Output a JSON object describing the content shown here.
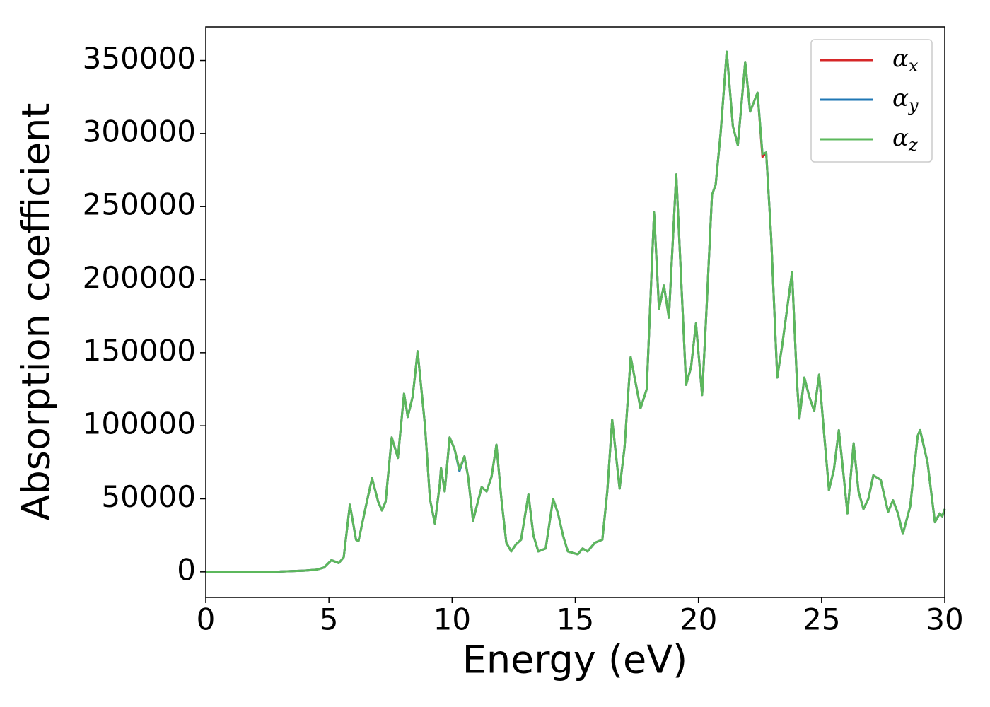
{
  "chart_data": {
    "type": "line",
    "xlabel": "Energy (eV)",
    "ylabel": "Absorption coefficient",
    "x": [
      0,
      1,
      2,
      3,
      4,
      4.5,
      4.8,
      5.1,
      5.4,
      5.6,
      5.85,
      6.1,
      6.2,
      6.5,
      6.75,
      7.0,
      7.15,
      7.3,
      7.55,
      7.8,
      8.05,
      8.2,
      8.4,
      8.6,
      8.9,
      9.1,
      9.3,
      9.5,
      9.55,
      9.7,
      9.9,
      10.1,
      10.3,
      10.5,
      10.65,
      10.85,
      11.0,
      11.2,
      11.4,
      11.6,
      11.8,
      12.0,
      12.2,
      12.4,
      12.6,
      12.8,
      13.1,
      13.3,
      13.5,
      13.8,
      14.1,
      14.3,
      14.5,
      14.7,
      14.9,
      15.1,
      15.3,
      15.5,
      15.8,
      16.1,
      16.3,
      16.5,
      16.8,
      17.0,
      17.25,
      17.5,
      17.65,
      17.9,
      18.2,
      18.4,
      18.6,
      18.8,
      19.1,
      19.3,
      19.5,
      19.7,
      19.9,
      20.15,
      20.3,
      20.55,
      20.7,
      20.9,
      21.15,
      21.4,
      21.6,
      21.9,
      22.1,
      22.4,
      22.6,
      22.75,
      22.95,
      23.2,
      23.4,
      23.6,
      23.8,
      24.0,
      24.1,
      24.3,
      24.5,
      24.7,
      24.9,
      25.1,
      25.3,
      25.5,
      25.7,
      25.9,
      26.05,
      26.3,
      26.5,
      26.7,
      26.9,
      27.1,
      27.4,
      27.7,
      27.9,
      28.1,
      28.3,
      28.6,
      28.9,
      29.0,
      29.3,
      29.6,
      29.8,
      29.9,
      30
    ],
    "series": [
      {
        "name": "αx",
        "color": "#d62728",
        "values": [
          0,
          0,
          0,
          200,
          800,
          1500,
          3000,
          8000,
          6000,
          10000,
          46000,
          22000,
          21000,
          45000,
          64000,
          48000,
          42000,
          48000,
          92000,
          78000,
          122000,
          106000,
          120000,
          151000,
          100000,
          50000,
          33000,
          60000,
          71000,
          55000,
          92000,
          84000,
          70000,
          79000,
          65000,
          35000,
          45000,
          58000,
          55000,
          65000,
          87000,
          50000,
          20000,
          14000,
          19000,
          22000,
          53000,
          25000,
          14000,
          16000,
          50000,
          40000,
          25000,
          14000,
          13000,
          12000,
          16000,
          14000,
          20000,
          22000,
          55000,
          104000,
          57000,
          85000,
          147000,
          125000,
          112000,
          125000,
          246000,
          180000,
          196000,
          174000,
          272000,
          200000,
          128000,
          140000,
          170000,
          121000,
          170000,
          258000,
          265000,
          300000,
          356000,
          305000,
          292000,
          349000,
          315000,
          328000,
          284000,
          287000,
          230000,
          133000,
          155000,
          180000,
          205000,
          130000,
          105000,
          133000,
          120000,
          110000,
          135000,
          95000,
          56000,
          70000,
          97000,
          65000,
          40000,
          88000,
          55000,
          43000,
          50000,
          66000,
          63000,
          41000,
          49000,
          40000,
          26000,
          45000,
          93000,
          97000,
          75000,
          34000,
          40000,
          38000,
          43000
        ]
      },
      {
        "name": "αy",
        "color": "#1f77b4",
        "values": [
          0,
          0,
          0,
          200,
          800,
          1500,
          3000,
          8000,
          6000,
          10000,
          46000,
          22000,
          21000,
          45000,
          64000,
          48000,
          42000,
          48000,
          92000,
          78000,
          122000,
          106000,
          120000,
          151000,
          100000,
          50000,
          33000,
          60000,
          71000,
          55000,
          92000,
          84000,
          69000,
          79000,
          65000,
          35000,
          45000,
          58000,
          55000,
          65000,
          87000,
          50000,
          20000,
          14000,
          19000,
          22000,
          53000,
          25000,
          14000,
          16000,
          50000,
          40000,
          25000,
          14000,
          13000,
          12000,
          16000,
          14000,
          20000,
          22000,
          55000,
          104000,
          57000,
          85000,
          147000,
          125000,
          112000,
          125000,
          246000,
          180000,
          196000,
          174000,
          272000,
          200000,
          128000,
          140000,
          170000,
          121000,
          170000,
          258000,
          265000,
          300000,
          356000,
          305000,
          292000,
          349000,
          315000,
          328000,
          286000,
          287000,
          230000,
          133000,
          155000,
          180000,
          205000,
          130000,
          105000,
          133000,
          120000,
          110000,
          135000,
          95000,
          56000,
          70000,
          97000,
          65000,
          40000,
          88000,
          55000,
          43000,
          50000,
          66000,
          63000,
          41000,
          49000,
          40000,
          26000,
          45000,
          93000,
          97000,
          75000,
          34000,
          40000,
          38000,
          43000
        ]
      },
      {
        "name": "αz",
        "color": "#5cb85c",
        "values": [
          0,
          0,
          0,
          200,
          800,
          1500,
          3000,
          8000,
          6000,
          10000,
          46000,
          22000,
          21000,
          45000,
          64000,
          48000,
          42000,
          48000,
          92000,
          78000,
          122000,
          106000,
          120000,
          151000,
          100000,
          50000,
          33000,
          60000,
          71000,
          55000,
          92000,
          84000,
          70000,
          79000,
          65000,
          35000,
          45000,
          58000,
          55000,
          65000,
          87000,
          50000,
          20000,
          14000,
          19000,
          22000,
          53000,
          25000,
          14000,
          16000,
          50000,
          40000,
          25000,
          14000,
          13000,
          12000,
          16000,
          14000,
          20000,
          22000,
          55000,
          104000,
          57000,
          85000,
          147000,
          125000,
          112000,
          125000,
          246000,
          180000,
          196000,
          174000,
          272000,
          200000,
          128000,
          140000,
          170000,
          121000,
          170000,
          258000,
          265000,
          300000,
          356000,
          305000,
          292000,
          349000,
          315000,
          328000,
          286000,
          287000,
          230000,
          133000,
          155000,
          180000,
          205000,
          130000,
          105000,
          133000,
          120000,
          110000,
          135000,
          95000,
          56000,
          70000,
          97000,
          65000,
          40000,
          88000,
          55000,
          43000,
          50000,
          66000,
          63000,
          41000,
          49000,
          40000,
          26000,
          45000,
          93000,
          97000,
          75000,
          34000,
          40000,
          38000,
          43000
        ]
      }
    ],
    "xlim": [
      0,
      30
    ],
    "xticks": [
      0,
      5,
      10,
      15,
      20,
      25,
      30
    ],
    "ylim": [
      -17500,
      373000
    ],
    "yticks": [
      0,
      50000,
      100000,
      150000,
      200000,
      250000,
      300000,
      350000
    ],
    "legend": "upper right"
  }
}
